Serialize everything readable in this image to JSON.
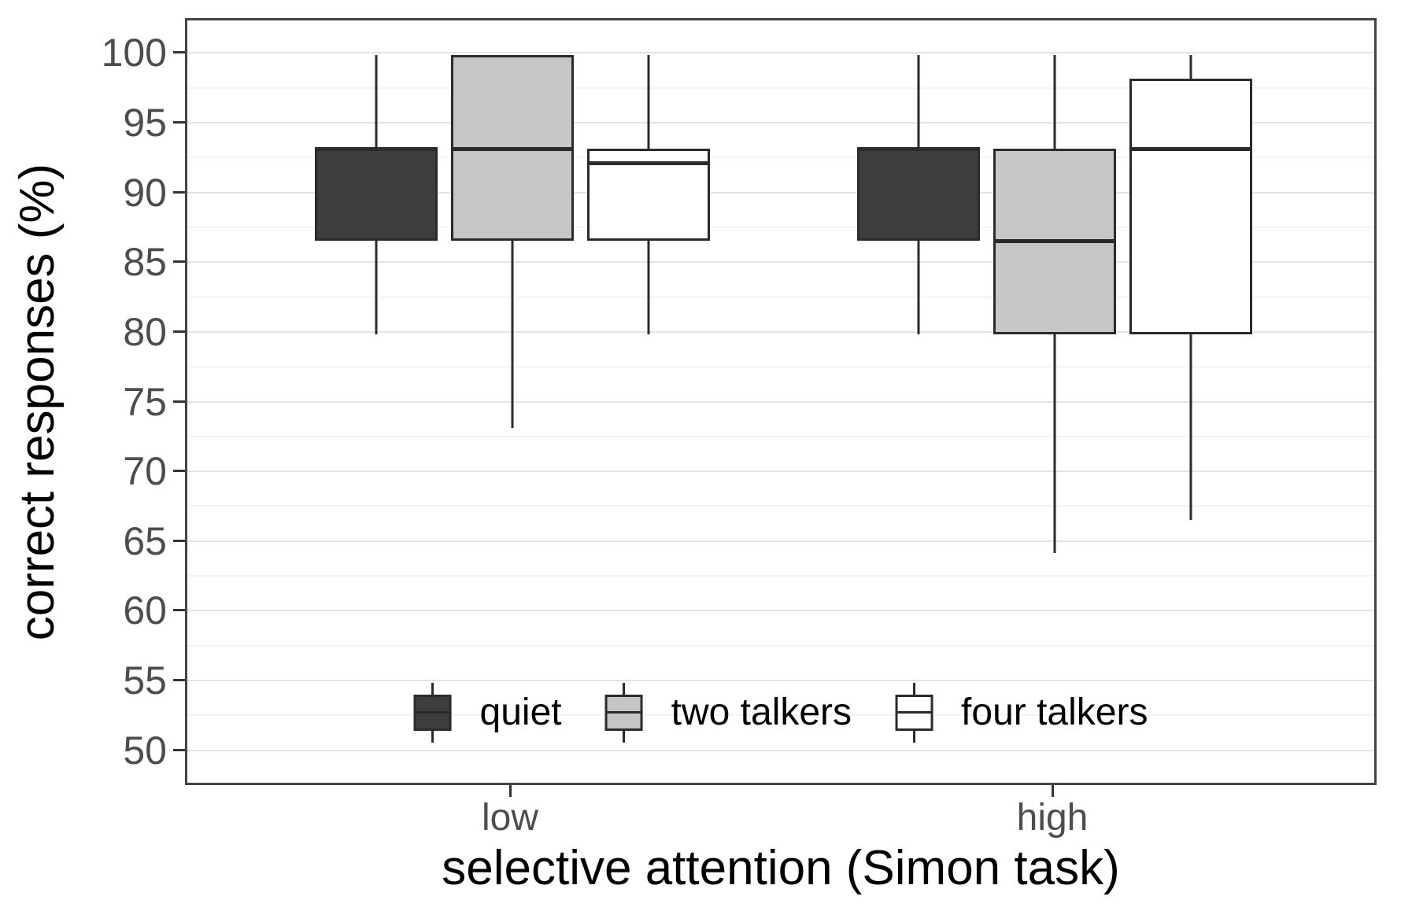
{
  "chart_data": {
    "type": "boxplot",
    "title": "",
    "xlabel": "selective attention (Simon task)",
    "ylabel": "correct responses (%)",
    "categories": [
      "low",
      "high"
    ],
    "series": [
      {
        "name": "quiet",
        "fill": "#3e3e3e",
        "boxes": [
          {
            "category": "low",
            "min": 80,
            "q1": 86.7,
            "median": 93.3,
            "q3": 93.3,
            "max": 100
          },
          {
            "category": "high",
            "min": 80,
            "q1": 86.7,
            "median": 93.3,
            "q3": 93.3,
            "max": 100
          }
        ]
      },
      {
        "name": "two talkers",
        "fill": "#c6c6c6",
        "boxes": [
          {
            "category": "low",
            "min": 73.3,
            "q1": 86.7,
            "median": 93.3,
            "q3": 100,
            "max": 100
          },
          {
            "category": "high",
            "min": 64.3,
            "q1": 80,
            "median": 86.7,
            "q3": 93.3,
            "max": 100
          }
        ]
      },
      {
        "name": "four talkers",
        "fill": "#ffffff",
        "boxes": [
          {
            "category": "low",
            "min": 80,
            "q1": 86.7,
            "median": 92.3,
            "q3": 93.3,
            "max": 100
          },
          {
            "category": "high",
            "min": 66.7,
            "q1": 80,
            "median": 93.3,
            "q3": 98.3,
            "max": 100
          }
        ]
      }
    ],
    "y_ticks": [
      100,
      95,
      90,
      85,
      80,
      75,
      70,
      65,
      60,
      55,
      50
    ],
    "y_minor_ticks": [
      97.5,
      92.5,
      87.5,
      82.5,
      77.5,
      72.5,
      67.5,
      62.5,
      57.5,
      52.5
    ],
    "ylim": [
      47.5,
      102.5
    ],
    "grid": true,
    "legend_position": "bottom-inside",
    "legend_labels": [
      "quiet",
      "two talkers",
      "four talkers"
    ]
  },
  "colors": {
    "panel_border": "#434343",
    "box_stroke": "#2b2b2b",
    "gridline_major": "#e4e4e4",
    "gridline_minor": "#f3f3f3",
    "tick_label": "#4d4d4d",
    "axis_title": "#000000",
    "background": "#ffffff"
  }
}
